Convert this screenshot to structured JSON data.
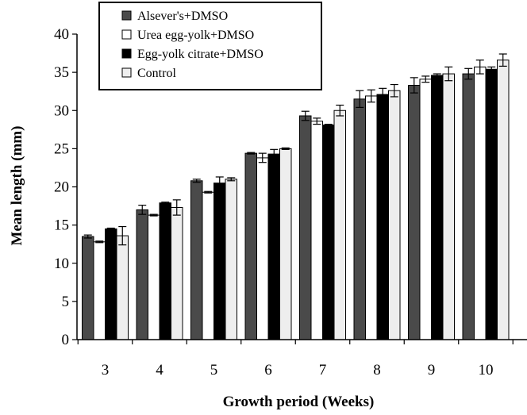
{
  "chart_data": {
    "type": "bar",
    "xlabel": "Growth period (Weeks)",
    "ylabel": "Mean length (mm)",
    "ylim": [
      0,
      40
    ],
    "yticks": [
      0,
      5,
      10,
      15,
      20,
      25,
      30,
      35,
      40
    ],
    "categories": [
      "3",
      "4",
      "5",
      "6",
      "7",
      "8",
      "9",
      "10"
    ],
    "legend_position": "top-left",
    "grid": false,
    "series": [
      {
        "name": "Alsever's+DMSO",
        "color": "#4a4a4a",
        "values": [
          13.5,
          17.0,
          20.8,
          24.4,
          29.3,
          31.5,
          33.3,
          34.8
        ],
        "errors": [
          0.2,
          0.6,
          0.2,
          0.1,
          0.6,
          1.1,
          1.0,
          0.7
        ]
      },
      {
        "name": "Urea egg-yolk+DMSO",
        "color": "#ffffff",
        "values": [
          12.8,
          16.3,
          19.3,
          23.8,
          28.6,
          31.9,
          34.1,
          35.7
        ],
        "errors": [
          0.1,
          0.1,
          0.1,
          0.6,
          0.4,
          0.8,
          0.4,
          0.9
        ]
      },
      {
        "name": "Egg-yolk citrate+DMSO",
        "color": "#000000",
        "values": [
          14.5,
          17.9,
          20.5,
          24.3,
          28.1,
          32.1,
          34.6,
          35.4
        ],
        "errors": [
          0.1,
          0.1,
          0.8,
          0.6,
          0.1,
          0.8,
          0.2,
          0.3
        ]
      },
      {
        "name": "Control",
        "color": "#eeeeee",
        "values": [
          13.6,
          17.3,
          21.0,
          25.0,
          30.0,
          32.6,
          34.8,
          36.6
        ],
        "errors": [
          1.2,
          1.0,
          0.2,
          0.1,
          0.7,
          0.8,
          0.9,
          0.8
        ]
      }
    ]
  }
}
